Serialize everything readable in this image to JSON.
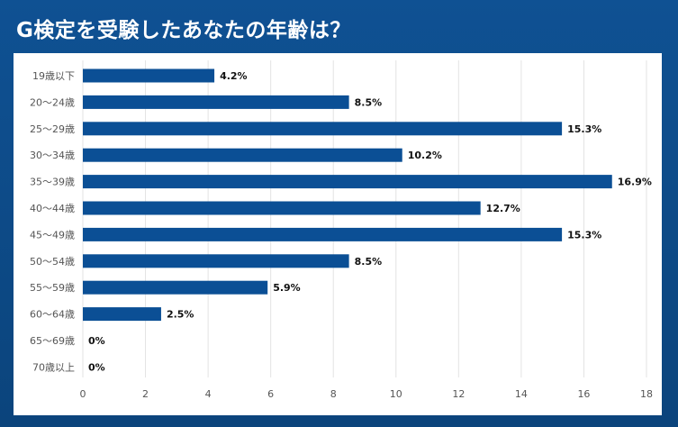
{
  "title": "G検定を受験したあなたの年齢は？",
  "colors": {
    "background": "#0d4a86",
    "bar": "#0b4f95",
    "panel": "#ffffff",
    "grid": "#e3e3e3"
  },
  "chart_data": {
    "type": "bar",
    "orientation": "horizontal",
    "title": "G検定を受験したあなたの年齢は？",
    "xlabel": "",
    "ylabel": "",
    "xlim": [
      0,
      18
    ],
    "xticks": [
      0,
      2,
      4,
      6,
      8,
      10,
      12,
      14,
      16,
      18
    ],
    "grid": "vertical",
    "categories": [
      "19歳以下",
      "20〜24歳",
      "25〜29歳",
      "30〜34歳",
      "35〜39歳",
      "40〜44歳",
      "45〜49歳",
      "50〜54歳",
      "55〜59歳",
      "60〜64歳",
      "65〜69歳",
      "70歳以上"
    ],
    "values": [
      4.2,
      8.5,
      15.3,
      10.2,
      16.9,
      12.7,
      15.3,
      8.5,
      5.9,
      2.5,
      0,
      0
    ],
    "labels": [
      "4.2%",
      "8.5%",
      "15.3%",
      "10.2%",
      "16.9%",
      "12.7%",
      "15.3%",
      "8.5%",
      "5.9%",
      "2.5%",
      "0%",
      "0%"
    ]
  }
}
